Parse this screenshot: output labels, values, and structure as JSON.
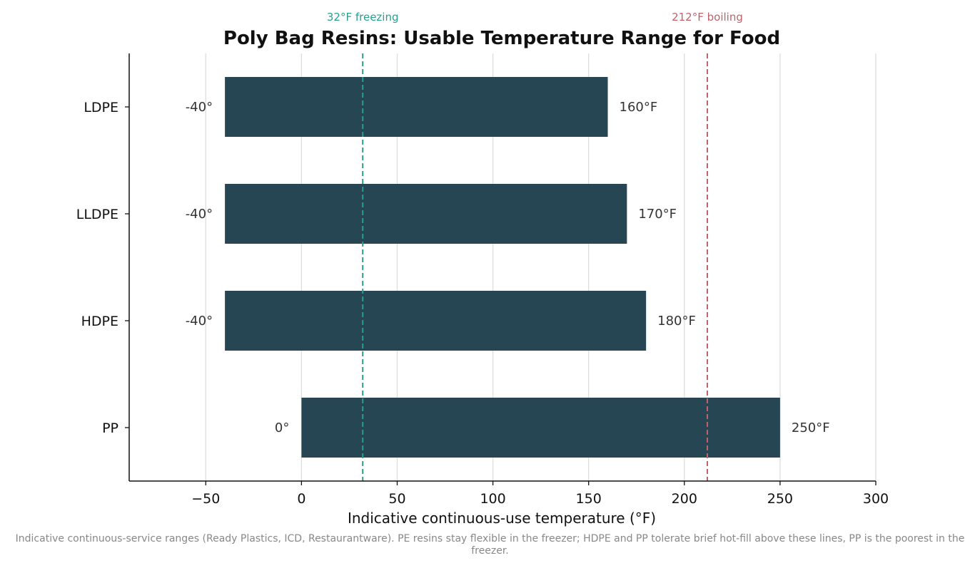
{
  "chart_data": {
    "type": "bar",
    "orientation": "horizontal",
    "title": "Poly Bag Resins: Usable Temperature Range for Food",
    "xlabel": "Indicative continuous-use temperature (°F)",
    "ylabel": "",
    "xlim": [
      -90,
      300
    ],
    "x_ticks": [
      -50,
      0,
      50,
      100,
      150,
      200,
      250,
      300
    ],
    "x_tick_labels": [
      "−50",
      "0",
      "50",
      "100",
      "150",
      "200",
      "250",
      "300"
    ],
    "grid": "vertical",
    "categories": [
      "LDPE",
      "LLDPE",
      "HDPE",
      "PP"
    ],
    "series": [
      {
        "color": "#264653",
        "low": [
          -40,
          -40,
          -40,
          0
        ],
        "high": [
          160,
          170,
          180,
          250
        ],
        "low_labels": [
          "-40°",
          "-40°",
          "-40°",
          "0°"
        ],
        "high_labels": [
          "160°F",
          "170°F",
          "180°F",
          "250°F"
        ]
      }
    ],
    "reference_lines": [
      {
        "value": 32,
        "label": "32°F freezing",
        "color": "#2a9d8f",
        "style": "dashed"
      },
      {
        "value": 212,
        "label": "212°F boiling",
        "color": "#c0616b",
        "style": "dashed"
      }
    ],
    "footnote": "Indicative continuous-service ranges (Ready Plastics, ICD, Restaurantware). PE resins stay flexible in the freezer; HDPE and PP tolerate brief hot-fill above these lines, PP is the poorest in the freezer."
  }
}
